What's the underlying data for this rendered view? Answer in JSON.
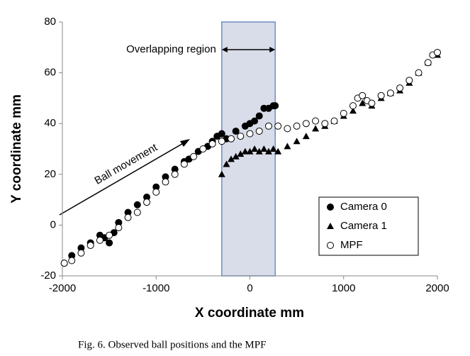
{
  "chart_data": {
    "type": "scatter",
    "x_label": "X coordinate mm",
    "y_label": "Y coordinate mm",
    "caption": "Fig. 6. Observed ball positions and the MPF",
    "xlim": [
      -2000,
      2000
    ],
    "ylim": [
      -20,
      80
    ],
    "xticks": [
      -2000,
      -1000,
      0,
      1000,
      2000
    ],
    "yticks": [
      -20,
      0,
      20,
      40,
      60,
      80
    ],
    "legend": "lower right",
    "shaded_region": {
      "x": [
        -300,
        270
      ],
      "label": "Overlapping region",
      "color": "#d9dde9"
    },
    "arrow_annotation": "Ball movement",
    "series": [
      {
        "name": "Camera 0",
        "color": "#000000",
        "marker": "circle",
        "filled": true,
        "x": [
          -1980,
          -1900,
          -1800,
          -1700,
          -1600,
          -1550,
          -1500,
          -1450,
          -1400,
          -1300,
          -1200,
          -1100,
          -1000,
          -900,
          -800,
          -700,
          -650,
          -550,
          -450,
          -400,
          -350,
          -300,
          -250,
          -150,
          -50,
          0,
          50,
          100,
          150,
          200,
          250,
          270
        ],
        "values": [
          -15,
          -12,
          -9,
          -7,
          -4,
          -5,
          -7,
          -3,
          1,
          5,
          8,
          11,
          15,
          19,
          22,
          25,
          26,
          29,
          31,
          33,
          35,
          36,
          34,
          37,
          39,
          40,
          41,
          43,
          46,
          46,
          47,
          47
        ]
      },
      {
        "name": "Camera 1",
        "color": "#000000",
        "marker": "triangle",
        "filled": true,
        "x": [
          -300,
          -250,
          -200,
          -150,
          -100,
          -50,
          0,
          50,
          100,
          150,
          200,
          250,
          300,
          400,
          500,
          600,
          700,
          800,
          900,
          1000,
          1100,
          1200,
          1300,
          1400,
          1500,
          1600,
          1700,
          1800,
          1900,
          2000
        ],
        "values": [
          20,
          24,
          26,
          27,
          28,
          29,
          29,
          30,
          29,
          30,
          29,
          30,
          29,
          31,
          33,
          35,
          38,
          39,
          41,
          43,
          45,
          48,
          47,
          50,
          52,
          53,
          56,
          60,
          64,
          67
        ]
      },
      {
        "name": "MPF",
        "color": "#000000",
        "marker": "circle",
        "filled": false,
        "x": [
          -1980,
          -1900,
          -1800,
          -1700,
          -1600,
          -1500,
          -1400,
          -1300,
          -1200,
          -1100,
          -1000,
          -900,
          -800,
          -700,
          -600,
          -500,
          -400,
          -300,
          -200,
          -100,
          0,
          100,
          200,
          300,
          400,
          500,
          600,
          700,
          800,
          900,
          1000,
          1100,
          1150,
          1200,
          1250,
          1300,
          1400,
          1500,
          1600,
          1700,
          1800,
          1900,
          1950,
          2000
        ],
        "values": [
          -15,
          -14,
          -11,
          -8,
          -6,
          -4,
          -1,
          3,
          5,
          9,
          13,
          17,
          20,
          24,
          27,
          30,
          32,
          33,
          34,
          35,
          36,
          37,
          39,
          39,
          38,
          39,
          40,
          41,
          40,
          41,
          44,
          47,
          50,
          51,
          49,
          48,
          51,
          52,
          54,
          57,
          60,
          64,
          67,
          68
        ]
      }
    ]
  }
}
